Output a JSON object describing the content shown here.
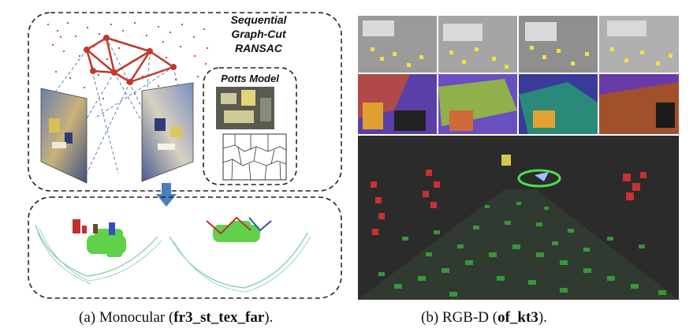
{
  "figure_a": {
    "box_label_line1": "Sequential",
    "box_label_line2": "Graph-Cut",
    "box_label_line3": "RANSAC",
    "potts_label": "Potts Model"
  },
  "captions": {
    "a_prefix": "(a)  Monocular (",
    "a_bold": "fr3_st_tex_far",
    "a_suffix": ").",
    "b_prefix": "(b)  RGB-D (",
    "b_bold": "of_kt3",
    "b_suffix": ")."
  },
  "colors": {
    "dashed_border": "#222222",
    "graph_edges": "#c0392b",
    "arrow": "#4a7fbf",
    "pointcloud_green": "#3fbf3f",
    "pointcloud_red": "#c83232",
    "rgbd_background": "#2b2b2b"
  }
}
